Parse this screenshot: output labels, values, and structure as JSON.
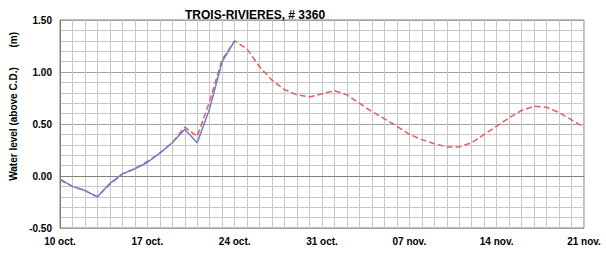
{
  "chart_data": {
    "type": "line",
    "title": "TROIS-RIVIERES, # 3360",
    "ylabel": "Water level (above C.D.)",
    "yunit": "(m)",
    "categories": [
      "10 oct.",
      null,
      null,
      null,
      null,
      null,
      null,
      "17 oct.",
      null,
      null,
      null,
      null,
      null,
      null,
      "24 oct.",
      null,
      null,
      null,
      null,
      null,
      null,
      "31 oct.",
      null,
      null,
      null,
      null,
      null,
      null,
      "07 nov.",
      null,
      null,
      null,
      null,
      null,
      null,
      "14 nov.",
      null,
      null,
      null,
      null,
      null,
      null,
      "21 nov."
    ],
    "series": [
      {
        "color": "#e06060",
        "line_style": "dashed",
        "values": [
          -0.04,
          -0.1,
          -0.14,
          -0.2,
          -0.08,
          0.02,
          0.07,
          0.14,
          0.22,
          0.32,
          0.47,
          0.38,
          0.72,
          1.12,
          1.3,
          1.22,
          1.05,
          0.92,
          0.83,
          0.78,
          0.76,
          0.79,
          0.82,
          0.78,
          0.7,
          0.62,
          0.55,
          0.48,
          0.4,
          0.35,
          0.31,
          0.28,
          0.28,
          0.32,
          0.4,
          0.48,
          0.56,
          0.63,
          0.67,
          0.66,
          0.61,
          0.54,
          0.47
        ]
      },
      {
        "color": "#7080c8",
        "line_style": "solid",
        "values": [
          -0.03,
          -0.1,
          -0.14,
          -0.2,
          -0.07,
          0.02,
          0.07,
          0.13,
          0.22,
          0.32,
          0.45,
          0.32,
          0.65,
          1.1,
          1.3,
          null,
          null,
          null,
          null,
          null,
          null,
          null,
          null,
          null,
          null,
          null,
          null,
          null,
          null,
          null,
          null,
          null,
          null,
          null,
          null,
          null,
          null,
          null,
          null,
          null,
          null,
          null,
          null
        ]
      }
    ],
    "ylim": [
      -0.5,
      1.5
    ],
    "yticks": [
      {
        "value": -0.5,
        "label": "-0.50"
      },
      {
        "value": 0,
        "label": "0.00"
      },
      {
        "value": 0.5,
        "label": "0.50"
      },
      {
        "value": 1,
        "label": "1.00"
      },
      {
        "value": 1.5,
        "label": "1.50"
      }
    ],
    "grid": true
  }
}
